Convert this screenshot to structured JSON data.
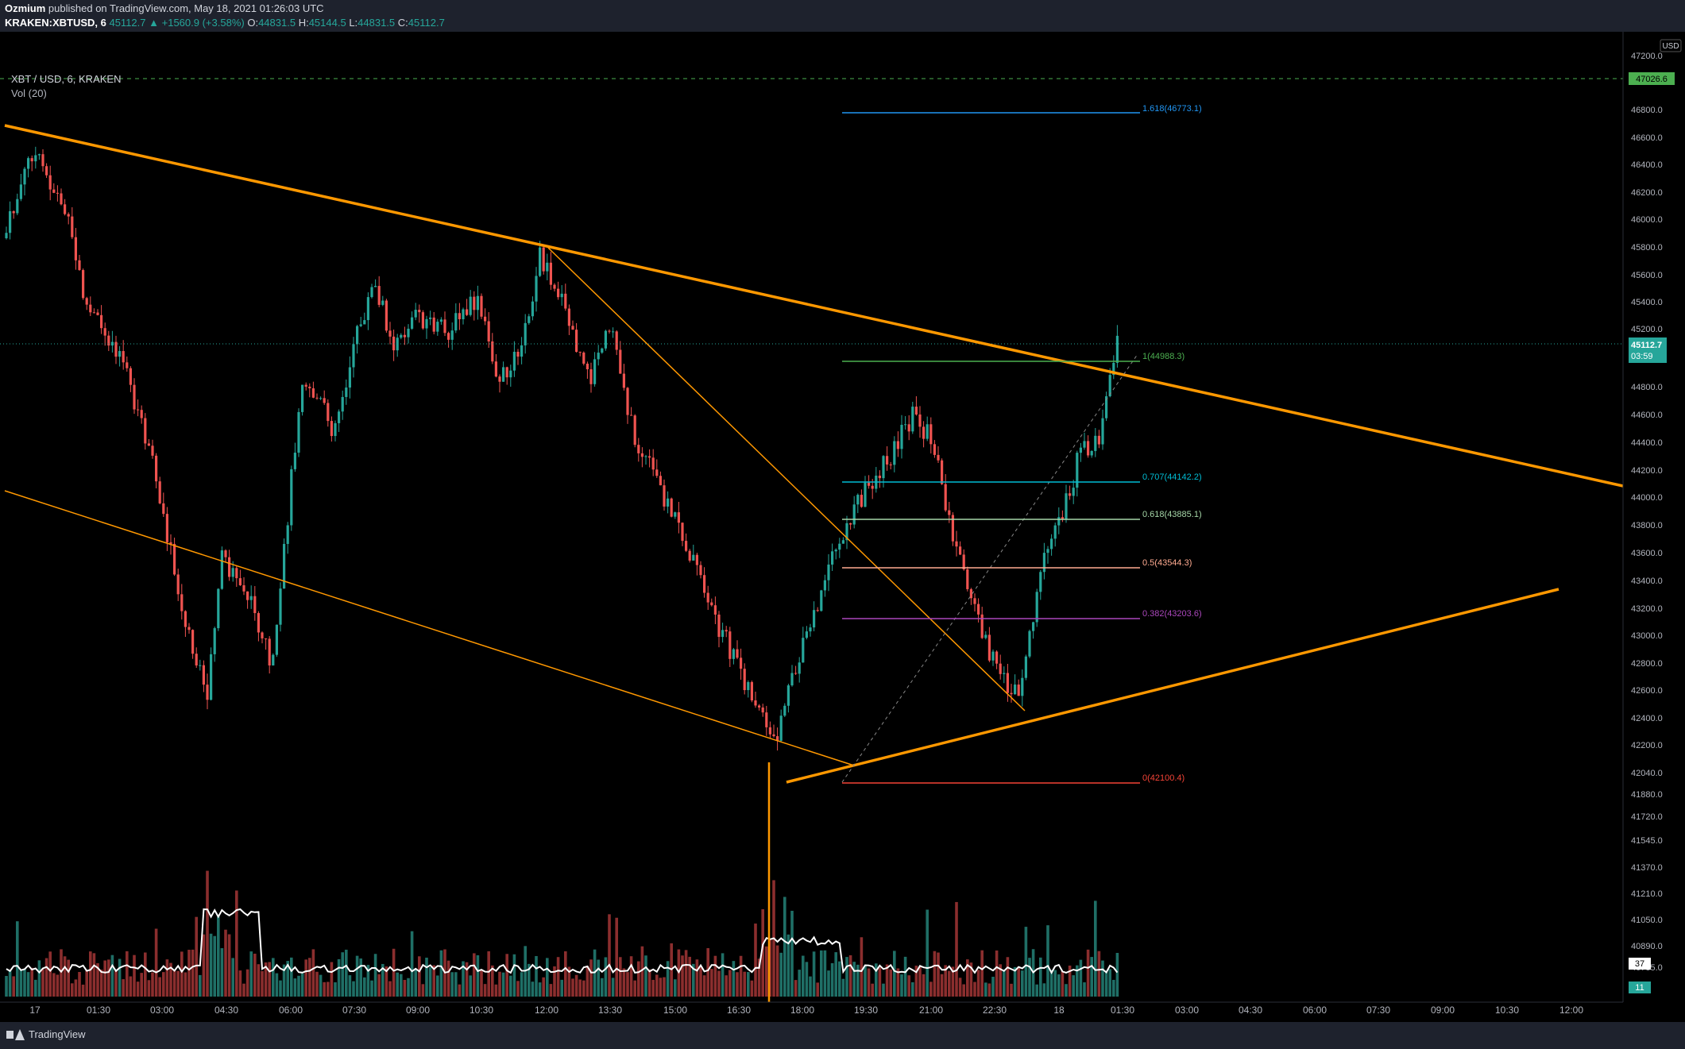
{
  "header": {
    "publisher": "Ozmium",
    "published_text": "published on TradingView.com, May 18, 2021 01:26:03 UTC",
    "symbol": "KRAKEN:XBTUSD, 6",
    "last": "45112.7",
    "change_arrow": "▲",
    "change": "+1560.9 (+3.58%)",
    "o_label": "O:",
    "o": "44831.5",
    "h_label": "H:",
    "h": "45144.5",
    "l_label": "L:",
    "l": "44831.5",
    "c_label": "C:",
    "c": "45112.7"
  },
  "legend": {
    "title": "XBT / USD, 6, KRAKEN",
    "volume": "Vol (20)"
  },
  "price_axis": {
    "currency": "USD",
    "ticks": [
      "47200.0",
      "46800.0",
      "46600.0",
      "46400.0",
      "46200.0",
      "46000.0",
      "45800.0",
      "45600.0",
      "45400.0",
      "45200.0",
      "44800.0",
      "44600.0",
      "44400.0",
      "44200.0",
      "44000.0",
      "43800.0",
      "43600.0",
      "43400.0",
      "43200.0",
      "43000.0",
      "42800.0",
      "42600.0",
      "42400.0",
      "42200.0",
      "42040.0",
      "41880.0",
      "41720.0",
      "41545.0",
      "41370.0",
      "41210.0",
      "41050.0",
      "40890.0",
      "40735.0"
    ],
    "alert_price": "47026.6",
    "current_price": "45112.7",
    "countdown": "03:59",
    "vol_ma_value": "37",
    "vol_value": "11"
  },
  "time_axis": {
    "labels": [
      "17",
      "01:30",
      "03:00",
      "04:30",
      "06:00",
      "07:30",
      "09:00",
      "10:30",
      "12:00",
      "13:30",
      "15:00",
      "16:30",
      "18:00",
      "19:30",
      "21:00",
      "22:30",
      "18",
      "01:30",
      "03:00",
      "04:30",
      "06:00",
      "07:30",
      "09:00",
      "10:30",
      "12:00"
    ]
  },
  "fib_levels": [
    {
      "label": "1.618(46773.1)",
      "color": "#2196f3"
    },
    {
      "label": "1(44988.3)",
      "color": "#4caf50"
    },
    {
      "label": "0.707(44142.2)",
      "color": "#00bcd4"
    },
    {
      "label": "0.618(43885.1)",
      "color": "#a5d6a7"
    },
    {
      "label": "0.5(43544.3)",
      "color": "#ffab91"
    },
    {
      "label": "0.382(43203.6)",
      "color": "#ab47bc"
    },
    {
      "label": "0(42100.4)",
      "color": "#f44336"
    }
  ],
  "colors": {
    "up": "#26a69a",
    "down": "#ef5350",
    "trendline": "#ff9800",
    "volume_ma": "#ffffff"
  },
  "footer": {
    "brand": "TradingView"
  }
}
